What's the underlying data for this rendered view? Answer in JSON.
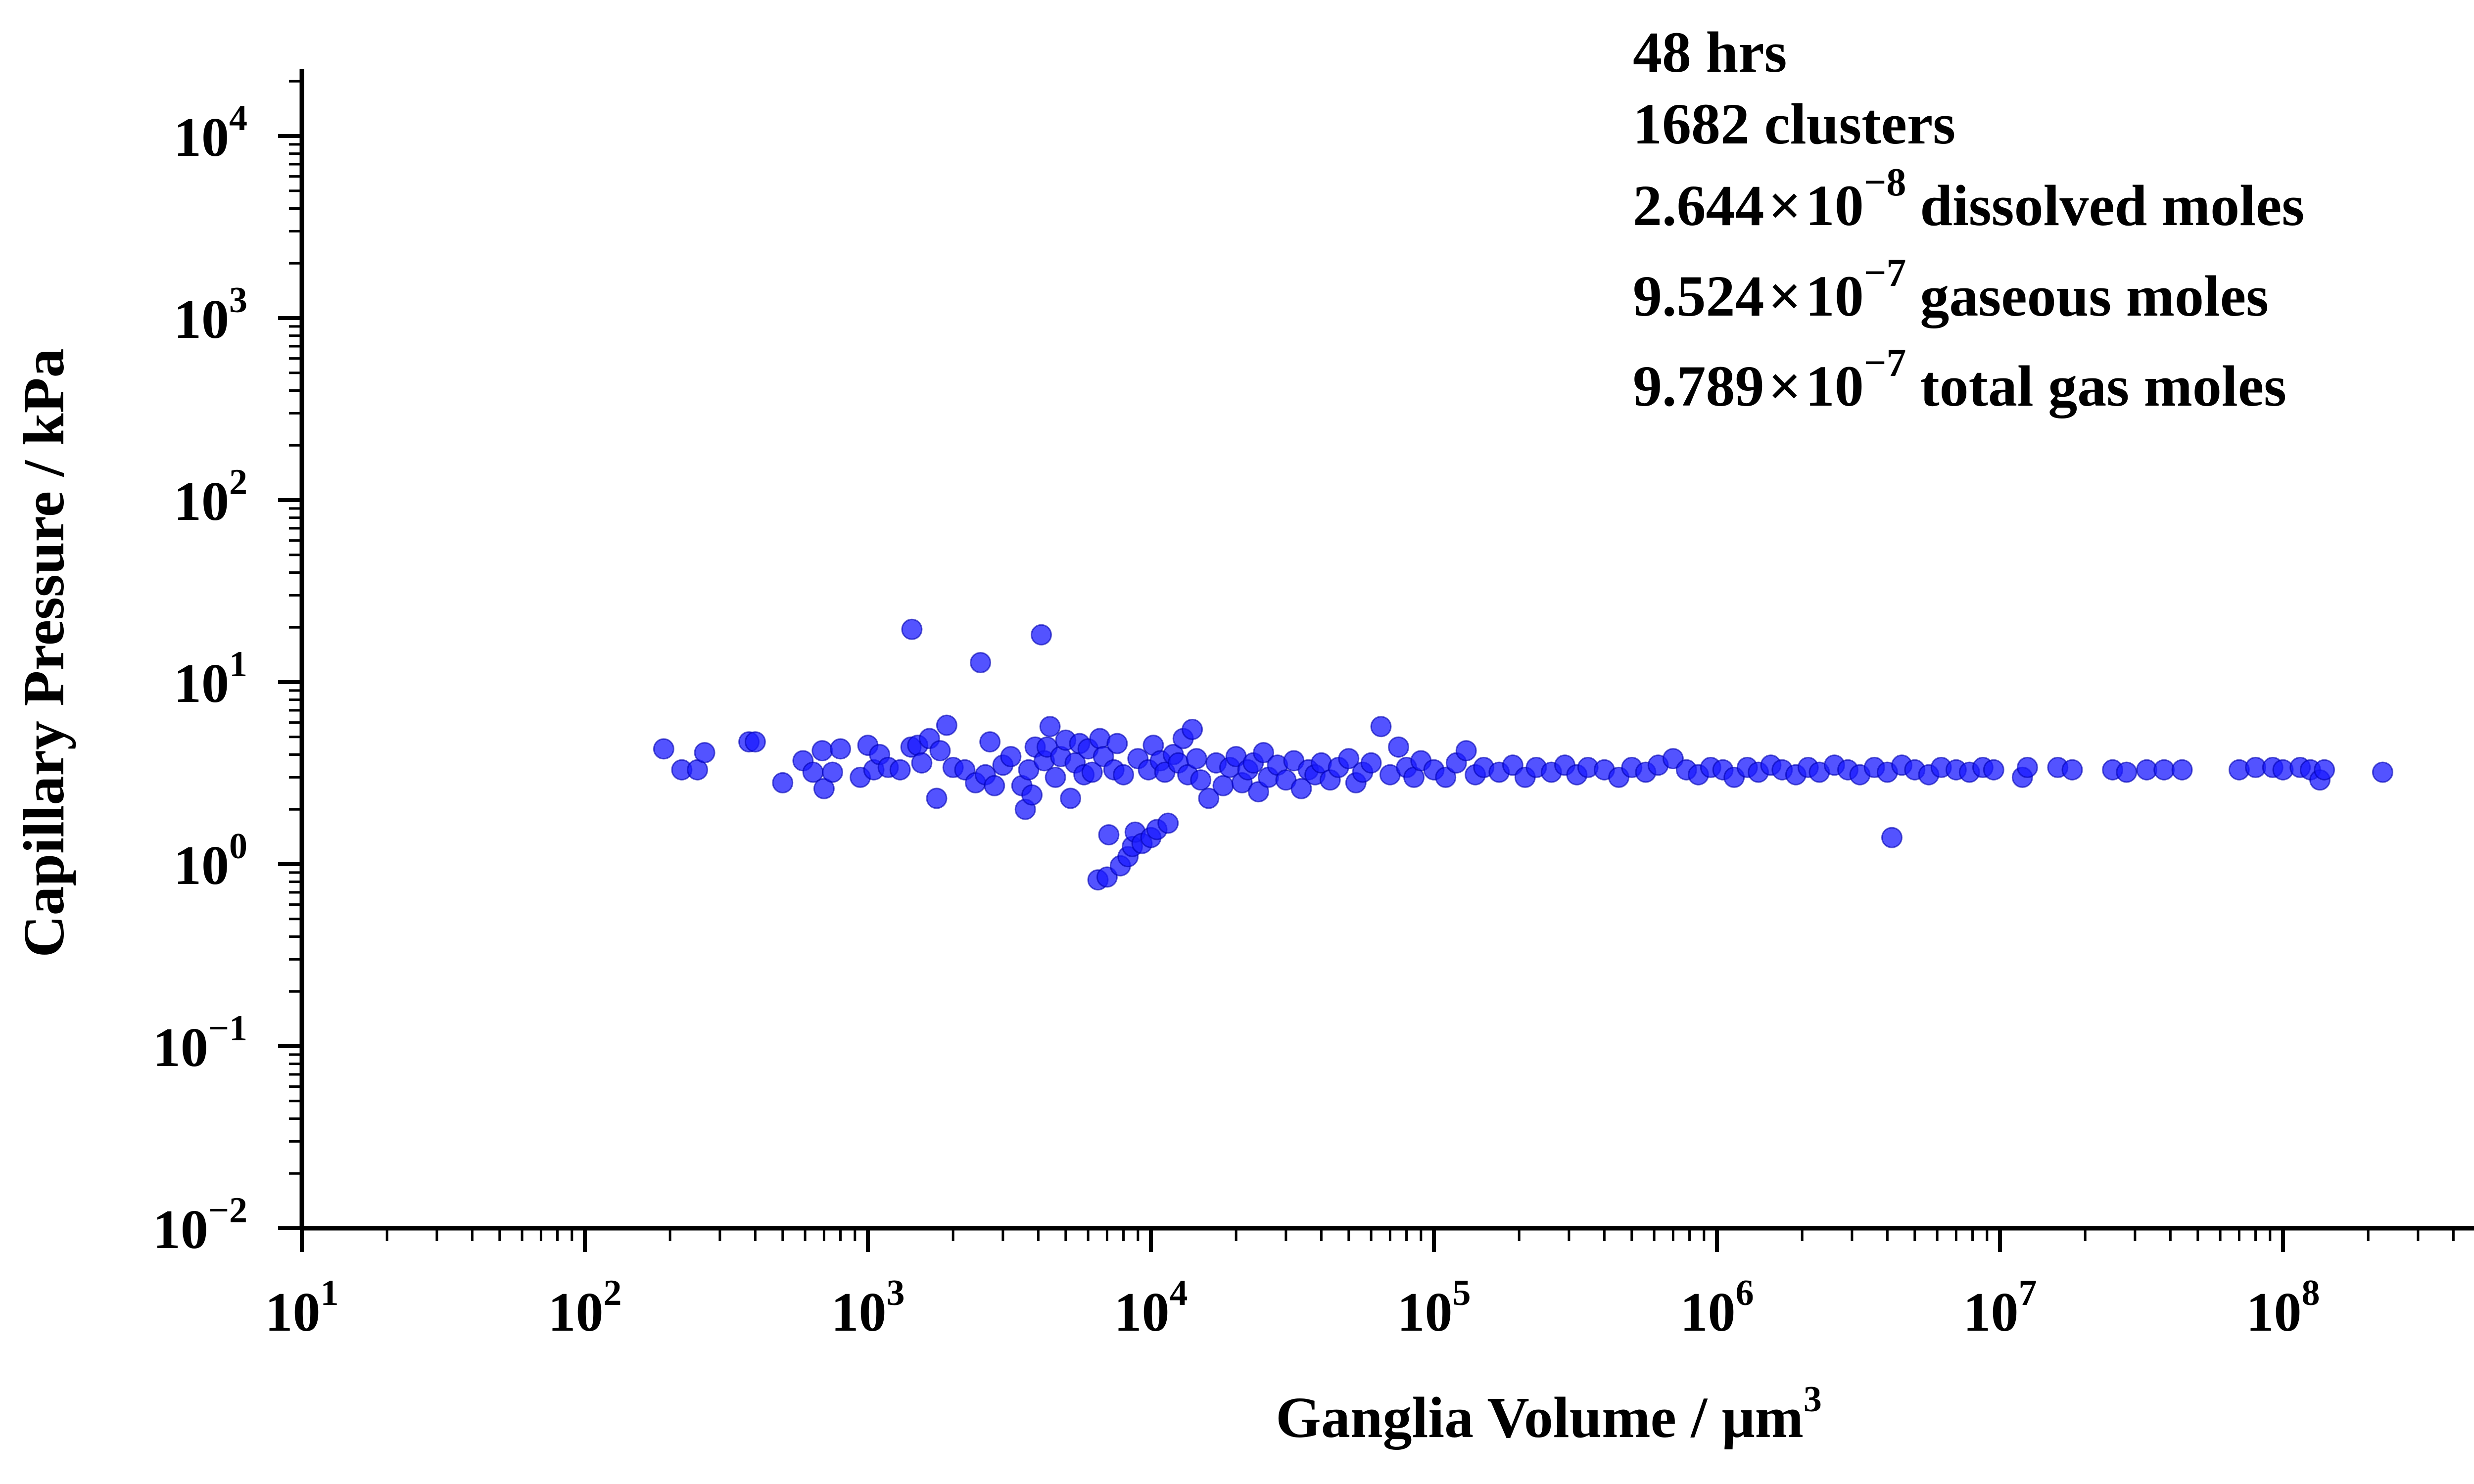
{
  "chart_data": {
    "type": "scatter",
    "xlabel": "Ganglia Volume / μm",
    "xlabel_sup": "3",
    "ylabel": "Capillary Pressure / kPa",
    "x_scale": "log",
    "y_scale": "log",
    "xlim": [
      10,
      500000000
    ],
    "ylim": [
      0.01,
      20000
    ],
    "x_ticks": [
      {
        "value": 10,
        "base": "10",
        "exp": "1"
      },
      {
        "value": 100,
        "base": "10",
        "exp": "2"
      },
      {
        "value": 1000,
        "base": "10",
        "exp": "3"
      },
      {
        "value": 10000,
        "base": "10",
        "exp": "4"
      },
      {
        "value": 100000,
        "base": "10",
        "exp": "5"
      },
      {
        "value": 1000000,
        "base": "10",
        "exp": "6"
      },
      {
        "value": 10000000,
        "base": "10",
        "exp": "7"
      },
      {
        "value": 100000000,
        "base": "10",
        "exp": "8"
      }
    ],
    "y_ticks": [
      {
        "value": 0.01,
        "base": "10",
        "exp": "−2"
      },
      {
        "value": 0.1,
        "base": "10",
        "exp": "−1"
      },
      {
        "value": 1,
        "base": "10",
        "exp": "0"
      },
      {
        "value": 10,
        "base": "10",
        "exp": "1"
      },
      {
        "value": 100,
        "base": "10",
        "exp": "2"
      },
      {
        "value": 1000,
        "base": "10",
        "exp": "3"
      },
      {
        "value": 10000,
        "base": "10",
        "exp": "4"
      }
    ],
    "grid": false,
    "marker_color": "#1a1aff",
    "annotations": {
      "time": {
        "text": "48 hrs",
        "color": "#ff0000"
      },
      "clusters": "1682 clusters",
      "dissolved": {
        "mantissa": "2.644",
        "times": "×",
        "base": "10",
        "exp": "−8",
        "label": "dissolved moles"
      },
      "gaseous": {
        "mantissa": "9.524",
        "times": "×",
        "base": "10",
        "exp": "−7",
        "label": "gaseous moles"
      },
      "total": {
        "mantissa": "9.789",
        "times": "×",
        "base": "10",
        "exp": "−7",
        "label": "total gas moles"
      }
    },
    "points": [
      [
        190,
        4.3
      ],
      [
        220,
        3.3
      ],
      [
        250,
        3.3
      ],
      [
        265,
        4.1
      ],
      [
        380,
        4.7
      ],
      [
        400,
        4.7
      ],
      [
        500,
        2.8
      ],
      [
        590,
        3.7
      ],
      [
        640,
        3.2
      ],
      [
        690,
        4.2
      ],
      [
        700,
        2.6
      ],
      [
        750,
        3.2
      ],
      [
        800,
        4.3
      ],
      [
        940,
        3.0
      ],
      [
        1000,
        4.5
      ],
      [
        1050,
        3.3
      ],
      [
        1100,
        4.0
      ],
      [
        1180,
        3.4
      ],
      [
        1300,
        3.3
      ],
      [
        1420,
        4.4
      ],
      [
        1430,
        19.5
      ],
      [
        1500,
        4.5
      ],
      [
        1550,
        3.6
      ],
      [
        1650,
        4.9
      ],
      [
        1750,
        2.3
      ],
      [
        1800,
        4.2
      ],
      [
        1900,
        5.8
      ],
      [
        2000,
        3.4
      ],
      [
        2200,
        3.3
      ],
      [
        2400,
        2.8
      ],
      [
        2500,
        12.8
      ],
      [
        2600,
        3.1
      ],
      [
        2700,
        4.7
      ],
      [
        2800,
        2.7
      ],
      [
        3000,
        3.5
      ],
      [
        3200,
        3.9
      ],
      [
        3500,
        2.7
      ],
      [
        3600,
        2.0
      ],
      [
        3700,
        3.3
      ],
      [
        3800,
        2.4
      ],
      [
        3900,
        4.4
      ],
      [
        4100,
        18.2
      ],
      [
        4200,
        3.7
      ],
      [
        4300,
        4.4
      ],
      [
        4400,
        5.7
      ],
      [
        4600,
        3.0
      ],
      [
        4800,
        3.9
      ],
      [
        5000,
        4.8
      ],
      [
        5200,
        2.3
      ],
      [
        5400,
        3.6
      ],
      [
        5600,
        4.6
      ],
      [
        5800,
        3.1
      ],
      [
        6000,
        4.3
      ],
      [
        6200,
        3.2
      ],
      [
        6500,
        0.82
      ],
      [
        6600,
        4.9
      ],
      [
        6800,
        3.9
      ],
      [
        7000,
        0.85
      ],
      [
        7100,
        1.45
      ],
      [
        7400,
        3.3
      ],
      [
        7600,
        4.6
      ],
      [
        7800,
        0.98
      ],
      [
        8000,
        3.1
      ],
      [
        8300,
        1.1
      ],
      [
        8600,
        1.25
      ],
      [
        8800,
        1.5
      ],
      [
        9000,
        3.8
      ],
      [
        9300,
        1.3
      ],
      [
        9800,
        3.3
      ],
      [
        10000,
        1.4
      ],
      [
        10200,
        4.5
      ],
      [
        10500,
        1.55
      ],
      [
        10800,
        3.7
      ],
      [
        11200,
        3.2
      ],
      [
        11500,
        1.68
      ],
      [
        12000,
        4.0
      ],
      [
        12500,
        3.6
      ],
      [
        13000,
        4.9
      ],
      [
        13500,
        3.1
      ],
      [
        14000,
        5.5
      ],
      [
        14500,
        3.8
      ],
      [
        15000,
        2.9
      ],
      [
        16000,
        2.3
      ],
      [
        17000,
        3.6
      ],
      [
        18000,
        2.7
      ],
      [
        19000,
        3.4
      ],
      [
        20000,
        3.9
      ],
      [
        21000,
        2.8
      ],
      [
        22000,
        3.3
      ],
      [
        23000,
        3.6
      ],
      [
        24000,
        2.5
      ],
      [
        25000,
        4.1
      ],
      [
        26000,
        3.0
      ],
      [
        28000,
        3.5
      ],
      [
        30000,
        2.9
      ],
      [
        32000,
        3.7
      ],
      [
        34000,
        2.6
      ],
      [
        36000,
        3.3
      ],
      [
        38000,
        3.1
      ],
      [
        40000,
        3.6
      ],
      [
        43000,
        2.9
      ],
      [
        46000,
        3.4
      ],
      [
        50000,
        3.8
      ],
      [
        53000,
        2.8
      ],
      [
        56000,
        3.2
      ],
      [
        60000,
        3.6
      ],
      [
        65000,
        5.7
      ],
      [
        70000,
        3.1
      ],
      [
        75000,
        4.4
      ],
      [
        80000,
        3.4
      ],
      [
        85000,
        3.0
      ],
      [
        90000,
        3.7
      ],
      [
        100000,
        3.3
      ],
      [
        110000,
        3.0
      ],
      [
        120000,
        3.6
      ],
      [
        130000,
        4.2
      ],
      [
        140000,
        3.1
      ],
      [
        150000,
        3.4
      ],
      [
        170000,
        3.2
      ],
      [
        190000,
        3.5
      ],
      [
        210000,
        3.0
      ],
      [
        230000,
        3.4
      ],
      [
        260000,
        3.2
      ],
      [
        290000,
        3.5
      ],
      [
        320000,
        3.1
      ],
      [
        350000,
        3.4
      ],
      [
        400000,
        3.3
      ],
      [
        450000,
        3.0
      ],
      [
        500000,
        3.4
      ],
      [
        560000,
        3.2
      ],
      [
        620000,
        3.5
      ],
      [
        700000,
        3.8
      ],
      [
        780000,
        3.3
      ],
      [
        860000,
        3.1
      ],
      [
        950000,
        3.4
      ],
      [
        1050000,
        3.3
      ],
      [
        1150000,
        3.0
      ],
      [
        1280000,
        3.4
      ],
      [
        1400000,
        3.2
      ],
      [
        1550000,
        3.5
      ],
      [
        1700000,
        3.3
      ],
      [
        1900000,
        3.1
      ],
      [
        2100000,
        3.4
      ],
      [
        2300000,
        3.2
      ],
      [
        2600000,
        3.5
      ],
      [
        2900000,
        3.3
      ],
      [
        3200000,
        3.1
      ],
      [
        3600000,
        3.4
      ],
      [
        4000000,
        3.2
      ],
      [
        4150000,
        1.4
      ],
      [
        4500000,
        3.5
      ],
      [
        5000000,
        3.3
      ],
      [
        5600000,
        3.1
      ],
      [
        6200000,
        3.4
      ],
      [
        7000000,
        3.3
      ],
      [
        7800000,
        3.2
      ],
      [
        8700000,
        3.4
      ],
      [
        9500000,
        3.3
      ],
      [
        12000000,
        3.0
      ],
      [
        12500000,
        3.4
      ],
      [
        16000000,
        3.4
      ],
      [
        18000000,
        3.3
      ],
      [
        25000000,
        3.3
      ],
      [
        28000000,
        3.2
      ],
      [
        33000000,
        3.3
      ],
      [
        38000000,
        3.3
      ],
      [
        44000000,
        3.3
      ],
      [
        70000000,
        3.3
      ],
      [
        80000000,
        3.4
      ],
      [
        92000000,
        3.4
      ],
      [
        100000000,
        3.3
      ],
      [
        115000000,
        3.4
      ],
      [
        125000000,
        3.3
      ],
      [
        135000000,
        2.9
      ],
      [
        140000000,
        3.3
      ],
      [
        225000000,
        3.2
      ]
    ]
  }
}
